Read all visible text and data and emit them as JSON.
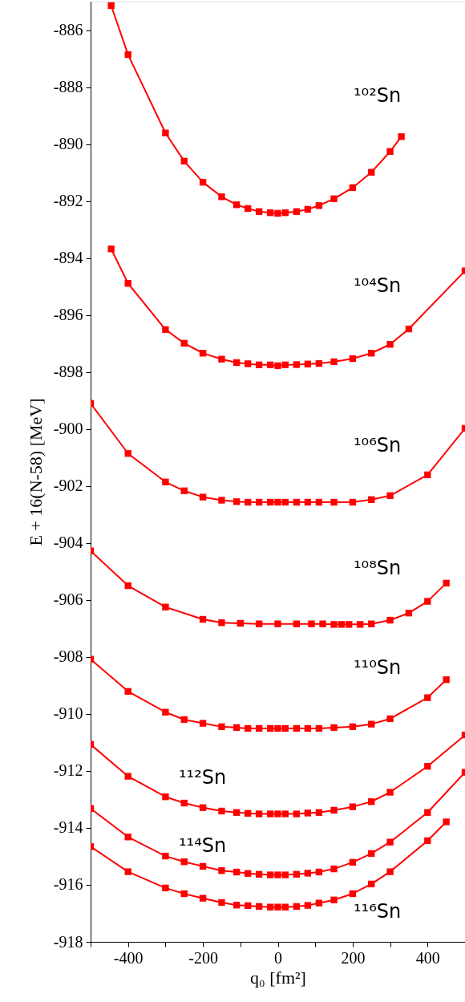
{
  "chart_data": {
    "type": "line",
    "xlabel": "q₀ [fm²]",
    "ylabel": "E + 16(N-58) [MeV]",
    "xlim": [
      -500,
      500
    ],
    "ylim": [
      -918,
      -885
    ],
    "xticks": [
      {
        "value": -500,
        "label": null
      },
      -400,
      {
        "value": -300,
        "label": null
      },
      -200,
      {
        "value": -100,
        "label": null
      },
      0,
      {
        "value": 100,
        "label": null
      },
      200,
      {
        "value": 300,
        "label": null
      },
      400,
      {
        "value": 500,
        "label": null
      }
    ],
    "yticks": [
      -886,
      -888,
      -890,
      -892,
      -894,
      -896,
      -898,
      -900,
      -902,
      -904,
      -906,
      -908,
      -910,
      -912,
      -914,
      -916,
      -918
    ],
    "grid": false,
    "marker": "square",
    "line_style": "solid",
    "series": [
      {
        "name": "¹⁰²Sn",
        "color": "#ff0000",
        "x": [
          -445,
          -400,
          -300,
          -250,
          -200,
          -150,
          -110,
          -80,
          -50,
          -20,
          0,
          20,
          50,
          80,
          110,
          150,
          200,
          250,
          300,
          330
        ],
        "values": [
          -885.14,
          -886.86,
          -889.61,
          -890.6,
          -891.34,
          -891.85,
          -892.13,
          -892.26,
          -892.37,
          -892.41,
          -892.43,
          -892.41,
          -892.37,
          -892.29,
          -892.16,
          -891.92,
          -891.53,
          -890.99,
          -890.26,
          -889.74
        ]
      },
      {
        "name": "¹⁰⁴Sn",
        "color": "#ff0000",
        "x": [
          -445,
          -400,
          -300,
          -250,
          -200,
          -150,
          -110,
          -80,
          -50,
          -20,
          0,
          20,
          50,
          80,
          110,
          150,
          200,
          250,
          300,
          350,
          500
        ],
        "values": [
          -893.68,
          -894.89,
          -896.51,
          -896.99,
          -897.34,
          -897.55,
          -897.67,
          -897.71,
          -897.75,
          -897.75,
          -897.78,
          -897.75,
          -897.74,
          -897.72,
          -897.7,
          -897.64,
          -897.53,
          -897.34,
          -897.03,
          -896.49,
          -894.45
        ]
      },
      {
        "name": "¹⁰⁶Sn",
        "color": "#ff0000",
        "x": [
          -500,
          -400,
          -300,
          -250,
          -200,
          -150,
          -110,
          -80,
          -50,
          -20,
          0,
          20,
          50,
          80,
          110,
          150,
          200,
          250,
          300,
          400,
          500
        ],
        "values": [
          -899.1,
          -900.86,
          -901.86,
          -902.17,
          -902.39,
          -902.5,
          -902.55,
          -902.57,
          -902.57,
          -902.57,
          -902.57,
          -902.57,
          -902.57,
          -902.57,
          -902.57,
          -902.57,
          -902.57,
          -902.48,
          -902.34,
          -901.61,
          -899.98
        ]
      },
      {
        "name": "¹⁰⁸Sn",
        "color": "#ff0000",
        "x": [
          -500,
          -400,
          -300,
          -200,
          -150,
          -100,
          -50,
          0,
          50,
          90,
          120,
          150,
          170,
          190,
          220,
          250,
          300,
          350,
          400,
          450
        ],
        "values": [
          -904.28,
          -905.5,
          -906.25,
          -906.68,
          -906.8,
          -906.82,
          -906.84,
          -906.84,
          -906.84,
          -906.84,
          -906.84,
          -906.86,
          -906.86,
          -906.86,
          -906.86,
          -906.84,
          -906.71,
          -906.46,
          -906.05,
          -905.41
        ]
      },
      {
        "name": "¹¹⁰Sn",
        "color": "#ff0000",
        "x": [
          -500,
          -400,
          -300,
          -250,
          -200,
          -150,
          -110,
          -80,
          -50,
          -20,
          0,
          20,
          50,
          80,
          110,
          150,
          200,
          250,
          300,
          400,
          450
        ],
        "values": [
          -908.08,
          -909.21,
          -909.94,
          -910.2,
          -910.33,
          -910.45,
          -910.48,
          -910.51,
          -910.51,
          -910.51,
          -910.51,
          -910.51,
          -910.51,
          -910.51,
          -910.51,
          -910.48,
          -910.45,
          -910.36,
          -910.17,
          -909.43,
          -908.8
        ]
      },
      {
        "name": "¹¹²Sn",
        "color": "#ff0000",
        "x": [
          -500,
          -400,
          -300,
          -250,
          -200,
          -150,
          -110,
          -80,
          -50,
          -20,
          0,
          20,
          50,
          80,
          110,
          150,
          200,
          250,
          300,
          400,
          500
        ],
        "values": [
          -911.07,
          -912.19,
          -912.91,
          -913.13,
          -913.29,
          -913.41,
          -913.46,
          -913.49,
          -913.51,
          -913.51,
          -913.51,
          -913.51,
          -913.51,
          -913.48,
          -913.46,
          -913.38,
          -913.26,
          -913.08,
          -912.75,
          -911.84,
          -910.74
        ]
      },
      {
        "name": "¹¹⁴Sn",
        "color": "#ff0000",
        "x": [
          -500,
          -400,
          -300,
          -250,
          -200,
          -150,
          -110,
          -80,
          -50,
          -20,
          0,
          20,
          50,
          80,
          110,
          150,
          200,
          250,
          300,
          400,
          500
        ],
        "values": [
          -913.32,
          -914.32,
          -914.99,
          -915.19,
          -915.35,
          -915.5,
          -915.55,
          -915.6,
          -915.63,
          -915.65,
          -915.65,
          -915.65,
          -915.63,
          -915.59,
          -915.55,
          -915.44,
          -915.21,
          -914.9,
          -914.5,
          -913.46,
          -912.05
        ]
      },
      {
        "name": "¹¹⁶Sn",
        "color": "#ff0000",
        "x": [
          -500,
          -400,
          -300,
          -250,
          -200,
          -150,
          -110,
          -80,
          -50,
          -20,
          0,
          20,
          50,
          80,
          110,
          150,
          200,
          250,
          300,
          400,
          450
        ],
        "values": [
          -914.66,
          -915.54,
          -916.11,
          -916.31,
          -916.47,
          -916.62,
          -916.71,
          -916.73,
          -916.76,
          -916.78,
          -916.78,
          -916.78,
          -916.76,
          -916.72,
          -916.64,
          -916.53,
          -916.31,
          -915.97,
          -915.54,
          -914.45,
          -913.79
        ]
      }
    ]
  }
}
